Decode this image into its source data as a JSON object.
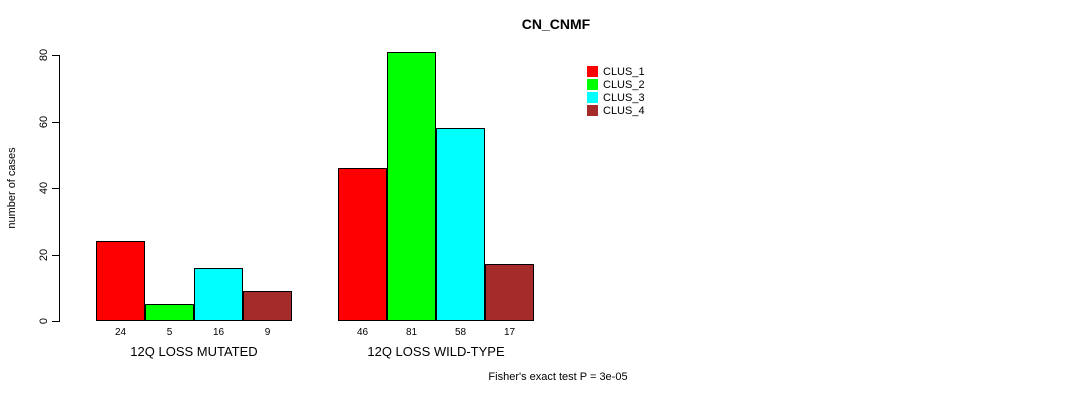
{
  "chart_data": {
    "type": "bar",
    "title": "CN_CNMF",
    "ylabel": "number of cases",
    "xlabel": "",
    "ylim": [
      0,
      80
    ],
    "yticks": [
      0,
      20,
      40,
      60,
      80
    ],
    "grid": false,
    "legend_position": "top-right",
    "bar_border_color": "#000000",
    "groups": [
      {
        "label": "12Q LOSS MUTATED",
        "values": [
          24,
          5,
          16,
          9
        ]
      },
      {
        "label": "12Q LOSS WILD-TYPE",
        "values": [
          46,
          81,
          58,
          17
        ]
      }
    ],
    "series": [
      {
        "name": "CLUS_1",
        "color": "#FF0000"
      },
      {
        "name": "CLUS_2",
        "color": "#00FF00"
      },
      {
        "name": "CLUS_3",
        "color": "#00FFFF"
      },
      {
        "name": "CLUS_4",
        "color": "#A52A2A"
      }
    ],
    "footnote": "Fisher's exact test P = 3e-05"
  }
}
